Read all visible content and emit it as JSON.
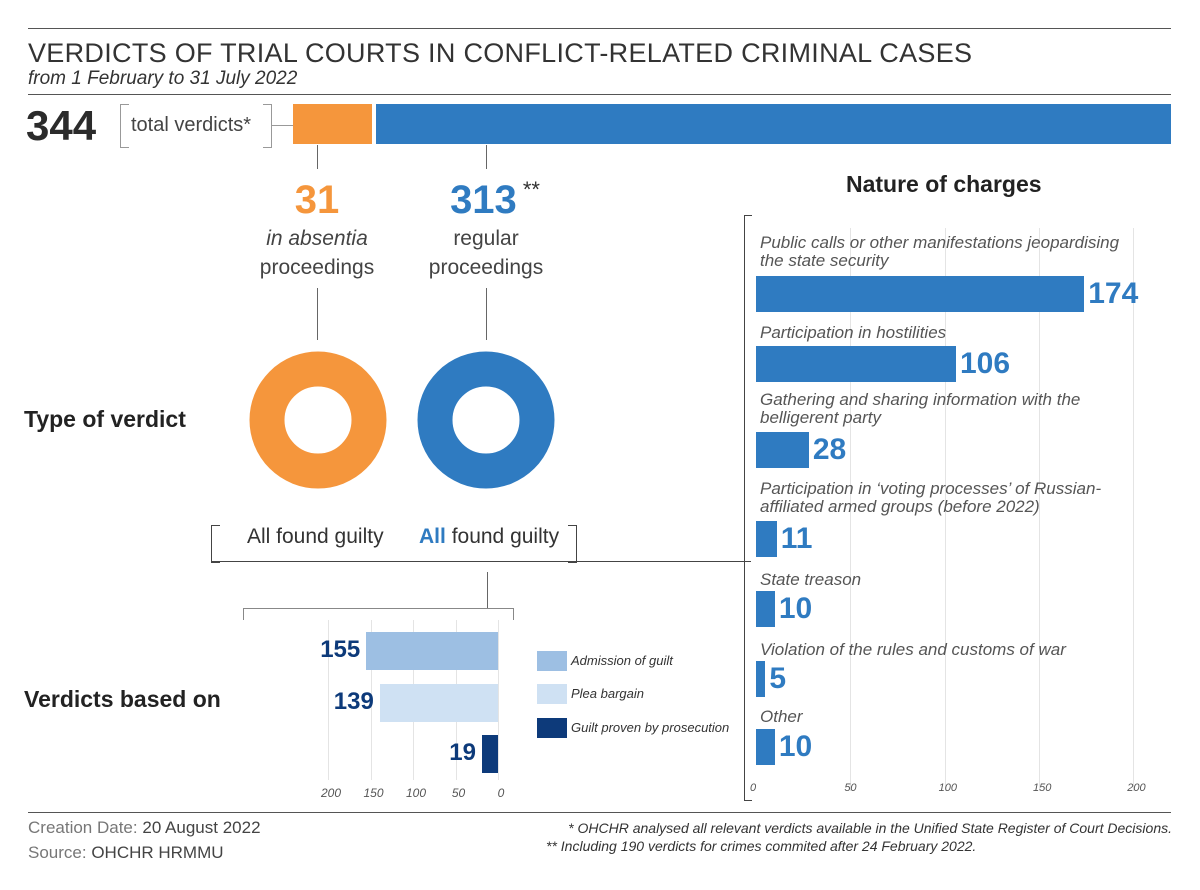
{
  "title": "VERDICTS OF TRIAL COURTS IN CONFLICT-RELATED CRIMINAL CASES",
  "subtitle": "from 1 February to 31 July 2022",
  "total": {
    "value": "344",
    "label": "total verdicts*"
  },
  "colors": {
    "orange": "#f5963c",
    "blue": "#2f7bc1",
    "light_blue": "#9dbfe3",
    "pale_blue": "#cfe1f3",
    "navy": "#0d3a7a"
  },
  "split": {
    "absentia": {
      "value": "31",
      "line1": "in absentia",
      "line2": "proceedings"
    },
    "regular": {
      "value": "313",
      "mark": "**",
      "line1": "regular",
      "line2": "proceedings"
    }
  },
  "type_of_verdict": {
    "label": "Type of verdict",
    "left_text": "All found guilty",
    "right_bold": "All",
    "right_text": "found guilty"
  },
  "verdicts_based_on": {
    "label": "Verdicts based on"
  },
  "charges_title": "Nature of charges",
  "footer": {
    "creation_label": "Creation Date:",
    "creation_value": "20 August 2022",
    "source_label": "Source:",
    "source_value": "OHCHR HRMMU",
    "note1": "* OHCHR analysed all relevant verdicts available in the Unified State Register of Court Decisions.",
    "note2": "** Including 190 verdicts for crimes commited after 24 February 2022."
  },
  "chart_data": [
    {
      "type": "bar",
      "orientation": "horizontal",
      "title": "Nature of charges",
      "categories": [
        "Public calls or other manifestations jeopardising the state security",
        "Participation in hostilities",
        "Gathering and sharing information with the belligerent party",
        "Participation in ‘voting processes’ of Russian-affiliated armed groups (before 2022)",
        "State treason",
        "Violation of the rules and customs of war",
        "Other"
      ],
      "values": [
        174,
        106,
        28,
        11,
        10,
        5,
        10
      ],
      "xlim": [
        0,
        220
      ],
      "ticks": [
        "0",
        "50",
        "100",
        "150",
        "200"
      ],
      "grid": true
    },
    {
      "type": "bar",
      "orientation": "horizontal",
      "title": "Verdicts based on",
      "categories": [
        "Admission of guilt",
        "Plea bargain",
        "Guilt proven by prosecution"
      ],
      "values": [
        155,
        139,
        19
      ],
      "xlim": [
        0,
        220
      ],
      "ticks": [
        "200",
        "150",
        "100",
        "50",
        "0"
      ],
      "reversed_axis": true,
      "grid": true
    },
    {
      "type": "bar",
      "orientation": "horizontal",
      "stacked": true,
      "title": "total verdicts",
      "categories": [
        "in absentia proceedings",
        "regular proceedings"
      ],
      "values": [
        31,
        313
      ]
    }
  ]
}
